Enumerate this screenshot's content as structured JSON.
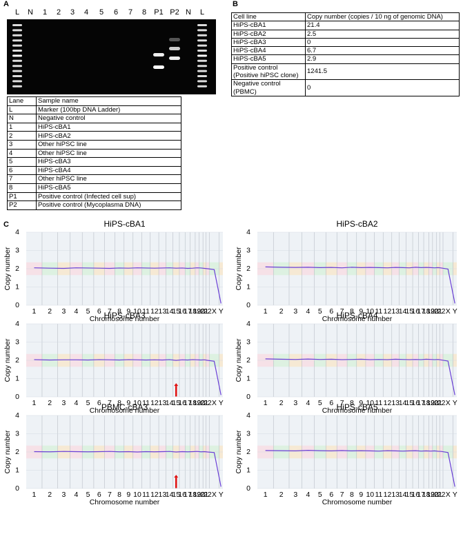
{
  "panels": {
    "a": "A",
    "b": "B",
    "c": "C"
  },
  "gel": {
    "lanes": [
      "L",
      "N",
      "1",
      "2",
      "3",
      "4",
      "5",
      "6",
      "7",
      "8",
      "P1",
      "P2",
      "N",
      "L"
    ]
  },
  "table_a": {
    "header": [
      "Lane",
      "Sample name"
    ],
    "rows": [
      [
        "L",
        "Marker (100bp DNA Ladder)"
      ],
      [
        "N",
        "Negative control"
      ],
      [
        "1",
        "HiPS-cBA1"
      ],
      [
        "2",
        "HiPS-cBA2"
      ],
      [
        "3",
        "Other hiPSC line"
      ],
      [
        "4",
        "Other hiPSC line"
      ],
      [
        "5",
        "HiPS-cBA3"
      ],
      [
        "6",
        "HiPS-cBA4"
      ],
      [
        "7",
        "Other hiPSC line"
      ],
      [
        "8",
        "HiPS-cBA5"
      ],
      [
        "P1",
        "Positive control (Infected cell sup)"
      ],
      [
        "P2",
        "Positive control (Mycoplasma DNA)"
      ]
    ]
  },
  "table_b": {
    "header": [
      "Cell line",
      "Copy number (copies / 10 ng of genomic DNA)"
    ],
    "rows": [
      [
        "HiPS-cBA1",
        21.4
      ],
      [
        "HiPS-cBA2",
        2.5
      ],
      [
        "HiPS-cBA3",
        0
      ],
      [
        "HiPS-cBA4",
        6.7
      ],
      [
        "HiPS-cBA5",
        2.9
      ],
      [
        "Positive control (Positive hiPSC clone)",
        1241.5
      ],
      [
        "Negative control (PBMC)",
        0
      ]
    ]
  },
  "chart_data": [
    {
      "type": "line",
      "title": "HiPS-cBA1",
      "y_label": "Copy number",
      "x_label": "Chromosome number",
      "categories": [
        "1",
        "2",
        "3",
        "4",
        "5",
        "6",
        "7",
        "8",
        "9",
        "10",
        "11",
        "12",
        "13",
        "14",
        "15",
        "16",
        "17",
        "18",
        "19",
        "20",
        "21",
        "22",
        "X",
        "Y"
      ],
      "values": [
        2.05,
        2.03,
        2.02,
        2.05,
        2.04,
        2.03,
        2.02,
        2.04,
        2.03,
        2.05,
        2.04,
        2.03,
        2.04,
        2.05,
        2.03,
        2.04,
        2.02,
        2.03,
        2.05,
        2.04,
        2.02,
        2.0,
        1.95,
        0.1
      ],
      "color": "#6a3fd6",
      "ylim": [
        0,
        4
      ],
      "yticks": [
        0,
        1,
        2,
        3,
        4
      ],
      "grid": true
    },
    {
      "type": "line",
      "title": "HiPS-cBA2",
      "y_label": "Copy number",
      "x_label": "Chromosome number",
      "categories": [
        "1",
        "2",
        "3",
        "4",
        "5",
        "6",
        "7",
        "8",
        "9",
        "10",
        "11",
        "12",
        "13",
        "14",
        "15",
        "16",
        "17",
        "18",
        "19",
        "20",
        "21",
        "22",
        "X",
        "Y"
      ],
      "values": [
        2.1,
        2.08,
        2.07,
        2.08,
        2.06,
        2.07,
        2.05,
        2.08,
        2.06,
        2.07,
        2.06,
        2.05,
        2.07,
        2.06,
        2.05,
        2.08,
        2.06,
        2.07,
        2.06,
        2.05,
        2.06,
        2.04,
        1.98,
        0.1
      ],
      "color": "#6a3fd6",
      "ylim": [
        0,
        4
      ],
      "yticks": [
        0,
        1,
        2,
        3,
        4
      ],
      "grid": true
    },
    {
      "type": "line",
      "title": "HiPS-cBA3",
      "y_label": "Copy number",
      "x_label": "Chromosome number",
      "categories": [
        "1",
        "2",
        "3",
        "4",
        "5",
        "6",
        "7",
        "8",
        "9",
        "10",
        "11",
        "12",
        "13",
        "14",
        "15",
        "16",
        "17",
        "18",
        "19",
        "20",
        "21",
        "22",
        "X",
        "Y"
      ],
      "values": [
        2.04,
        2.02,
        2.03,
        2.03,
        2.02,
        2.04,
        2.03,
        2.02,
        2.04,
        2.03,
        2.02,
        2.03,
        2.02,
        2.04,
        2.0,
        2.03,
        2.02,
        2.04,
        2.03,
        2.02,
        2.03,
        2.0,
        1.95,
        0.1
      ],
      "color": "#6a3fd6",
      "ylim": [
        0,
        4
      ],
      "yticks": [
        0,
        1,
        2,
        3,
        4
      ],
      "grid": true,
      "highlight": "15"
    },
    {
      "type": "line",
      "title": "HiPS-cBA4",
      "y_label": "Copy number",
      "x_label": "Chromosome number",
      "categories": [
        "1",
        "2",
        "3",
        "4",
        "5",
        "6",
        "7",
        "8",
        "9",
        "10",
        "11",
        "12",
        "13",
        "14",
        "15",
        "16",
        "17",
        "18",
        "19",
        "20",
        "21",
        "22",
        "X",
        "Y"
      ],
      "values": [
        2.08,
        2.06,
        2.05,
        2.07,
        2.05,
        2.06,
        2.04,
        2.05,
        2.06,
        2.04,
        2.05,
        2.04,
        2.06,
        2.05,
        2.04,
        2.05,
        2.04,
        2.06,
        2.05,
        2.04,
        2.05,
        2.02,
        1.96,
        0.1
      ],
      "color": "#6a3fd6",
      "ylim": [
        0,
        4
      ],
      "yticks": [
        0,
        1,
        2,
        3,
        4
      ],
      "grid": true
    },
    {
      "type": "line",
      "title": "PBMC-cBA3",
      "y_label": "Copy number",
      "x_label": "Chromosome number",
      "categories": [
        "1",
        "2",
        "3",
        "4",
        "5",
        "6",
        "7",
        "8",
        "9",
        "10",
        "11",
        "12",
        "13",
        "14",
        "15",
        "16",
        "17",
        "18",
        "19",
        "20",
        "21",
        "22",
        "X",
        "Y"
      ],
      "values": [
        2.02,
        2.01,
        2.03,
        2.02,
        2.01,
        2.02,
        2.03,
        2.01,
        2.02,
        2.0,
        2.02,
        2.01,
        2.02,
        2.03,
        2.0,
        2.02,
        2.01,
        2.02,
        2.03,
        2.01,
        2.02,
        2.0,
        1.97,
        0.1
      ],
      "color": "#6a3fd6",
      "ylim": [
        0,
        4
      ],
      "yticks": [
        0,
        1,
        2,
        3,
        4
      ],
      "grid": true,
      "highlight": "15"
    },
    {
      "type": "line",
      "title": "HiPS-cBA5",
      "y_label": "Copy number",
      "x_label": "Chromosome number",
      "categories": [
        "1",
        "2",
        "3",
        "4",
        "5",
        "6",
        "7",
        "8",
        "9",
        "10",
        "11",
        "12",
        "13",
        "14",
        "15",
        "16",
        "17",
        "18",
        "19",
        "20",
        "21",
        "22",
        "X",
        "Y"
      ],
      "values": [
        2.08,
        2.07,
        2.06,
        2.09,
        2.07,
        2.06,
        2.08,
        2.06,
        2.07,
        2.06,
        2.05,
        2.07,
        2.06,
        2.05,
        2.06,
        2.07,
        2.05,
        2.06,
        2.05,
        2.06,
        2.04,
        2.03,
        1.97,
        0.1
      ],
      "color": "#6a3fd6",
      "ylim": [
        0,
        4
      ],
      "yticks": [
        0,
        1,
        2,
        3,
        4
      ],
      "grid": true
    }
  ]
}
